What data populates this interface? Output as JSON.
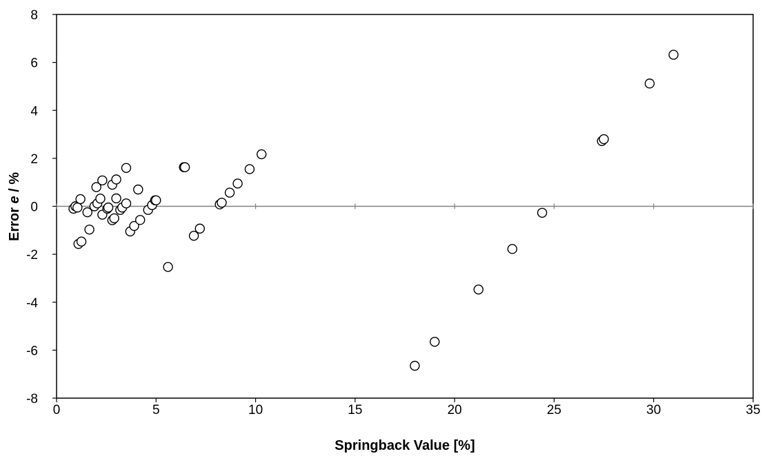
{
  "chart_data": {
    "type": "scatter",
    "title": "",
    "xlabel": "Springback Value [%]",
    "ylabel": {
      "prefix": "Error ",
      "italic": "e",
      "suffix": " / %"
    },
    "xlim": [
      0,
      35
    ],
    "ylim": [
      -8,
      8
    ],
    "xticks": [
      "0",
      "5",
      "10",
      "15",
      "20",
      "25",
      "30",
      "35"
    ],
    "yticks": [
      "-8",
      "-6",
      "-4",
      "-2",
      "0",
      "2",
      "4",
      "6",
      "8"
    ],
    "grid": false,
    "legend": "none",
    "zero_line": true,
    "marker": "open-circle",
    "series": [
      {
        "points": [
          [
            0.85,
            -0.1
          ],
          [
            0.95,
            0.0
          ],
          [
            1.05,
            -0.05
          ],
          [
            1.1,
            -1.57
          ],
          [
            1.2,
            0.3
          ],
          [
            1.25,
            -1.47
          ],
          [
            1.55,
            -0.25
          ],
          [
            1.65,
            -0.97
          ],
          [
            1.9,
            0.0
          ],
          [
            2.0,
            0.8
          ],
          [
            2.05,
            0.12
          ],
          [
            2.2,
            0.32
          ],
          [
            2.3,
            1.08
          ],
          [
            2.3,
            -0.35
          ],
          [
            2.55,
            -0.1
          ],
          [
            2.6,
            -0.05
          ],
          [
            2.8,
            0.9
          ],
          [
            2.8,
            -0.58
          ],
          [
            2.9,
            -0.5
          ],
          [
            3.0,
            1.12
          ],
          [
            3.0,
            0.33
          ],
          [
            3.2,
            -0.15
          ],
          [
            3.3,
            -0.05
          ],
          [
            3.5,
            0.12
          ],
          [
            3.5,
            1.6
          ],
          [
            3.7,
            -1.05
          ],
          [
            3.9,
            -0.82
          ],
          [
            4.1,
            0.7
          ],
          [
            4.2,
            -0.57
          ],
          [
            4.6,
            -0.15
          ],
          [
            4.8,
            0.05
          ],
          [
            4.95,
            0.25
          ],
          [
            5.0,
            0.25
          ],
          [
            5.6,
            -2.53
          ],
          [
            6.4,
            1.63
          ],
          [
            6.45,
            1.63
          ],
          [
            6.9,
            -1.23
          ],
          [
            7.2,
            -0.93
          ],
          [
            8.2,
            0.08
          ],
          [
            8.3,
            0.15
          ],
          [
            8.7,
            0.57
          ],
          [
            9.1,
            0.95
          ],
          [
            9.7,
            1.55
          ],
          [
            10.3,
            2.17
          ],
          [
            18.0,
            -6.65
          ],
          [
            19.0,
            -5.65
          ],
          [
            21.2,
            -3.47
          ],
          [
            22.9,
            -1.78
          ],
          [
            24.4,
            -0.27
          ],
          [
            27.4,
            2.72
          ],
          [
            27.5,
            2.8
          ],
          [
            29.8,
            5.12
          ],
          [
            31.0,
            6.32
          ]
        ]
      }
    ]
  }
}
